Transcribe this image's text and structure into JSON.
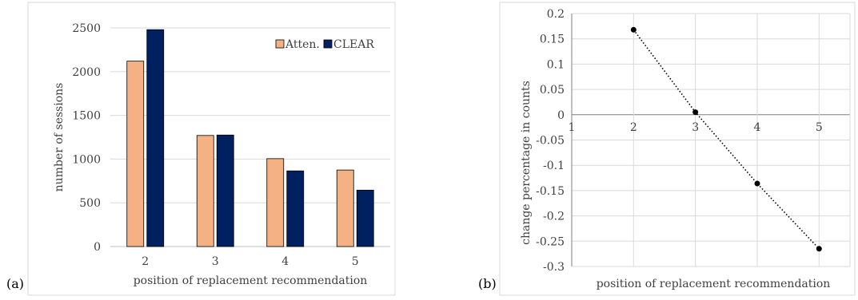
{
  "chart_data": [
    {
      "panel_label": "(a)",
      "type": "bar",
      "categories": [
        "2",
        "3",
        "4",
        "5"
      ],
      "series": [
        {
          "name": "Atten.",
          "values": [
            2120,
            1270,
            1005,
            875
          ],
          "color": "#f4b183"
        },
        {
          "name": "CLEAR",
          "values": [
            2480,
            1275,
            865,
            645
          ],
          "color": "#002060"
        }
      ],
      "xlabel": "position of replacement recommendation",
      "ylabel": "number of sessions",
      "ylim": [
        0,
        2500
      ],
      "yticks": [
        "0",
        "500",
        "1000",
        "1500",
        "2000",
        "2500"
      ],
      "grid": true,
      "legend": "top-right"
    },
    {
      "panel_label": "(b)",
      "type": "line",
      "x": [
        2,
        3,
        4,
        5
      ],
      "y": [
        0.168,
        0.005,
        -0.136,
        -0.265
      ],
      "xticks": [
        "1",
        "2",
        "3",
        "4",
        "5"
      ],
      "xlim": [
        1,
        5.5
      ],
      "ylim": [
        -0.3,
        0.2
      ],
      "yticks": [
        "0.2",
        "0.15",
        "0.1",
        "0.05",
        "0",
        "-0.05",
        "-0.1",
        "-0.15",
        "-0.2",
        "-0.25",
        "-0.3"
      ],
      "xlabel": "position of replacement recommendation",
      "ylabel": "change percentage in counts",
      "line_style": "dotted",
      "grid": true
    }
  ]
}
